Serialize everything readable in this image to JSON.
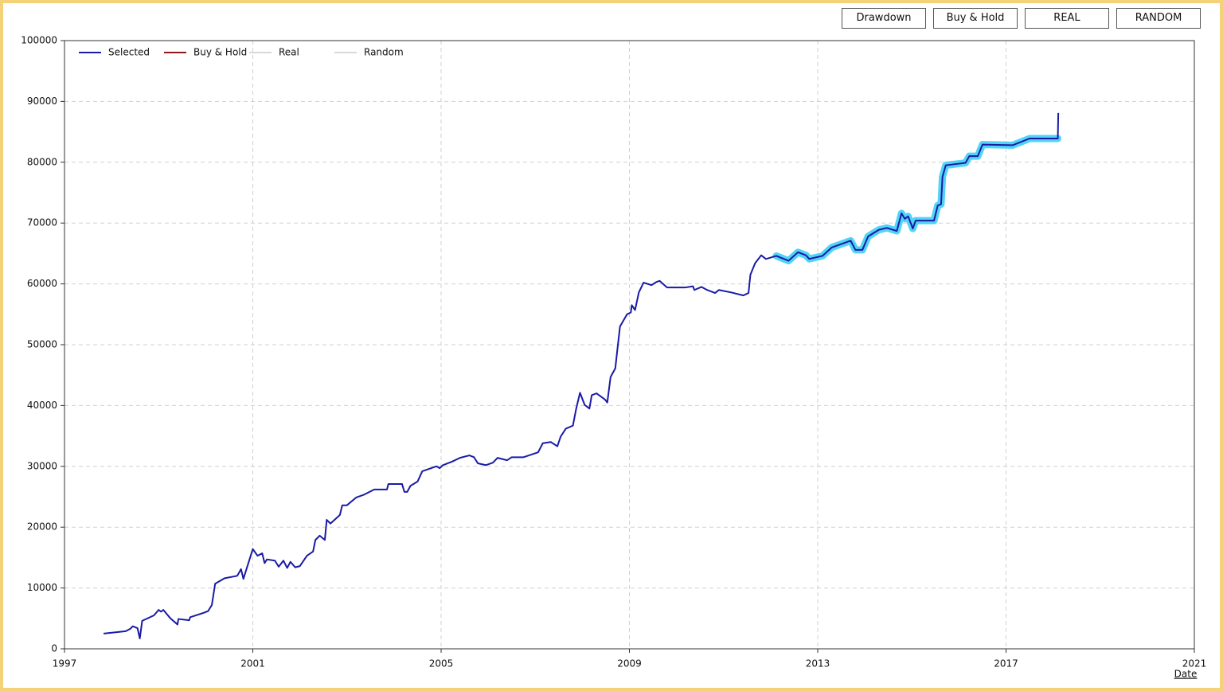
{
  "buttons": [
    "Drawdown",
    "Buy & Hold",
    "REAL",
    "RANDOM"
  ],
  "chart_data": {
    "type": "line",
    "x_label": "Date",
    "xlim": [
      1997,
      2021
    ],
    "xticks": [
      1997,
      2001,
      2005,
      2009,
      2013,
      2017,
      2021
    ],
    "ylim": [
      0,
      100000
    ],
    "yticks": [
      0,
      10000,
      20000,
      30000,
      40000,
      50000,
      60000,
      70000,
      80000,
      90000,
      100000
    ],
    "grid": true,
    "legend_position": "top-left",
    "legend": [
      {
        "name": "Selected",
        "color": "#1a1aa6"
      },
      {
        "name": "Buy & Hold",
        "color": "#8b1a1a"
      },
      {
        "name": "Real",
        "color": "#d8d8d8"
      },
      {
        "name": "Random",
        "color": "#d8d8d8"
      }
    ],
    "highlight": {
      "color": "#33ccf5",
      "x_range": [
        2012.12,
        2018.1
      ]
    },
    "series": [
      {
        "name": "Selected",
        "color": "#1a1aa6",
        "x": [
          1997.83,
          1998.3,
          1998.4,
          1998.45,
          1998.55,
          1998.6,
          1998.65,
          1998.9,
          1999.0,
          1999.05,
          1999.1,
          1999.25,
          1999.4,
          1999.42,
          1999.65,
          1999.67,
          1999.95,
          2000.05,
          2000.13,
          2000.2,
          2000.4,
          2000.67,
          2000.75,
          2000.8,
          2001.0,
          2001.1,
          2001.2,
          2001.25,
          2001.3,
          2001.47,
          2001.55,
          2001.65,
          2001.73,
          2001.8,
          2001.9,
          2002.0,
          2002.15,
          2002.28,
          2002.33,
          2002.42,
          2002.53,
          2002.57,
          2002.65,
          2002.85,
          2002.9,
          2003.0,
          2003.2,
          2003.35,
          2003.58,
          2003.85,
          2003.88,
          2004.17,
          2004.22,
          2004.28,
          2004.35,
          2004.5,
          2004.6,
          2004.9,
          2004.97,
          2005.04,
          2005.24,
          2005.4,
          2005.6,
          2005.7,
          2005.78,
          2005.95,
          2006.1,
          2006.2,
          2006.4,
          2006.5,
          2006.75,
          2007.06,
          2007.16,
          2007.33,
          2007.47,
          2007.54,
          2007.65,
          2007.8,
          2007.87,
          2007.95,
          2008.05,
          2008.15,
          2008.2,
          2008.3,
          2008.48,
          2008.53,
          2008.6,
          2008.7,
          2008.74,
          2008.8,
          2008.95,
          2009.03,
          2009.05,
          2009.12,
          2009.2,
          2009.3,
          2009.47,
          2009.57,
          2009.64,
          2009.8,
          2010.18,
          2010.35,
          2010.38,
          2010.53,
          2010.65,
          2010.82,
          2010.9,
          2011.16,
          2011.42,
          2011.53,
          2011.57,
          2011.67,
          2011.8,
          2011.9,
          2012.12,
          2012.38,
          2012.58,
          2012.75,
          2012.82,
          2013.1,
          2013.3,
          2013.7,
          2013.8,
          2013.95,
          2014.07,
          2014.3,
          2014.47,
          2014.68,
          2014.78,
          2014.85,
          2014.92,
          2015.02,
          2015.08,
          2015.47,
          2015.55,
          2015.62,
          2015.65,
          2015.72,
          2016.14,
          2016.22,
          2016.4,
          2016.5,
          2017.14,
          2017.5,
          2018.1,
          2018.11
        ],
        "values": [
          2500,
          2900,
          3300,
          3700,
          3400,
          1700,
          4600,
          5500,
          6400,
          6100,
          6400,
          5000,
          4000,
          4900,
          4700,
          5200,
          5900,
          6200,
          7200,
          10700,
          11600,
          12000,
          13100,
          11500,
          16400,
          15300,
          15700,
          14100,
          14700,
          14500,
          13500,
          14500,
          13300,
          14300,
          13400,
          13600,
          15300,
          16000,
          17900,
          18600,
          17900,
          21200,
          20600,
          22000,
          23600,
          23600,
          24900,
          25300,
          26200,
          26200,
          27100,
          27100,
          25800,
          25800,
          26800,
          27500,
          29200,
          30000,
          29700,
          30200,
          30800,
          31400,
          31800,
          31500,
          30500,
          30200,
          30600,
          31400,
          31000,
          31500,
          31500,
          32300,
          33800,
          34000,
          33300,
          34900,
          36200,
          36700,
          39500,
          42100,
          40100,
          39500,
          41700,
          42000,
          41000,
          40500,
          44700,
          46100,
          48900,
          53000,
          55000,
          55300,
          56500,
          55700,
          58600,
          60200,
          59800,
          60300,
          60500,
          59400,
          59400,
          59600,
          59000,
          59500,
          59000,
          58500,
          59000,
          58600,
          58100,
          58500,
          61500,
          63400,
          64700,
          64100,
          64600,
          63800,
          65200,
          64700,
          64100,
          64600,
          66000,
          67100,
          65600,
          65600,
          67800,
          68900,
          69200,
          68700,
          71600,
          70700,
          71100,
          69100,
          70400,
          70400,
          72900,
          73100,
          77600,
          79500,
          79900,
          81000,
          81000,
          82900,
          82800,
          83900,
          83900,
          88100
        ]
      }
    ]
  }
}
